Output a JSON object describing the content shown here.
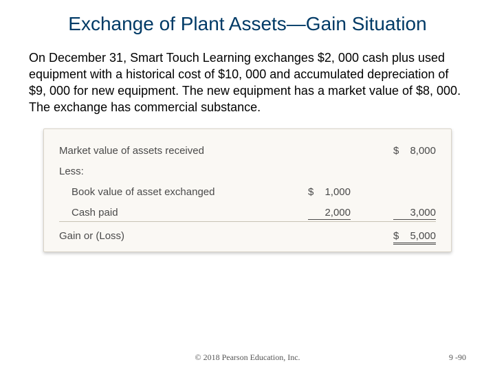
{
  "title": "Exchange of Plant Assets—Gain Situation",
  "body": "On December 31, Smart Touch Learning exchanges $2, 000 cash plus used equipment with a historical cost of $10, 000 and accumulated depreciation of $9, 000 for new equipment. The new equipment has a market value of $8, 000. The exchange has commercial substance.",
  "calc": {
    "row1_label": "Market value of assets received",
    "row1_amount": "8,000",
    "less_label": "Less:",
    "row2_label": "Book value of asset exchanged",
    "row2_col1": "1,000",
    "row3_label": "Cash paid",
    "row3_col1": "2,000",
    "row3_col2": "3,000",
    "row4_label": "Gain or (Loss)",
    "row4_amount": "5,000",
    "dollar": "$"
  },
  "footer_center": "© 2018 Pearson Education, Inc.",
  "footer_right": "9 -90",
  "colors": {
    "title": "#003a66",
    "box_bg": "#faf8f4",
    "box_border": "#d9d4c8",
    "text": "#4a4a4a"
  }
}
